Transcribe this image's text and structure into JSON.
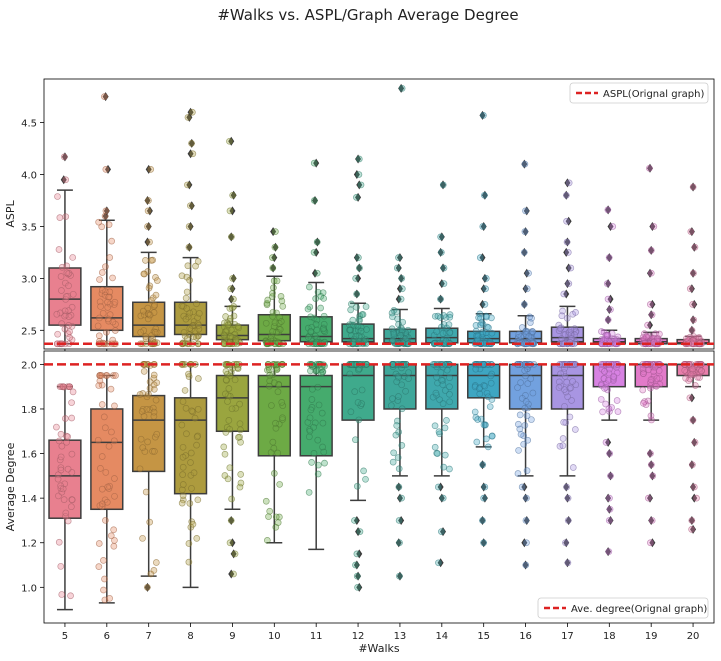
{
  "chart_data": {
    "type": "box",
    "title": "#Walks vs. ASPL/Graph Average Degree",
    "xlabel": "#Walks",
    "categories": [
      "5",
      "6",
      "7",
      "8",
      "9",
      "10",
      "11",
      "12",
      "13",
      "14",
      "15",
      "16",
      "17",
      "18",
      "19",
      "20"
    ],
    "palette": [
      "#e8808f",
      "#e58a62",
      "#c59544",
      "#ad9b3e",
      "#9aa53f",
      "#6daa45",
      "#45ab6d",
      "#3faa8c",
      "#3ea79a",
      "#3fa8ad",
      "#3ea6c2",
      "#72a1df",
      "#a895e2",
      "#d782e2",
      "#e27ac9",
      "#e97eab"
    ],
    "panels": [
      {
        "ylabel": "ASPL",
        "ylim": [
          2.32,
          4.92
        ],
        "yticks": [
          2.5,
          3.0,
          3.5,
          4.0,
          4.5
        ],
        "reference": {
          "value": 2.37,
          "label": "ASPL(Orignal graph)",
          "color": "#dd2222",
          "legend": "top-right"
        },
        "boxes": [
          {
            "q1": 2.55,
            "median": 2.8,
            "q3": 3.1,
            "whislo": 2.37,
            "whishi": 3.85,
            "fliers": [
              3.95,
              4.17
            ]
          },
          {
            "q1": 2.5,
            "median": 2.62,
            "q3": 2.92,
            "whislo": 2.37,
            "whishi": 3.56,
            "fliers": [
              3.6,
              3.65,
              4.05,
              4.75
            ]
          },
          {
            "q1": 2.44,
            "median": 2.55,
            "q3": 2.77,
            "whislo": 2.37,
            "whishi": 3.25,
            "fliers": [
              3.35,
              3.5,
              3.65,
              3.75,
              4.05
            ]
          },
          {
            "q1": 2.46,
            "median": 2.55,
            "q3": 2.77,
            "whislo": 2.37,
            "whishi": 3.2,
            "fliers": [
              3.3,
              3.5,
              3.7,
              3.9,
              4.2,
              4.3,
              4.55,
              4.6
            ]
          },
          {
            "q1": 2.41,
            "median": 2.45,
            "q3": 2.55,
            "whislo": 2.37,
            "whishi": 2.73,
            "fliers": [
              2.8,
              2.9,
              3.0,
              3.4,
              3.65,
              3.8,
              4.32
            ]
          },
          {
            "q1": 2.4,
            "median": 2.46,
            "q3": 2.65,
            "whislo": 2.37,
            "whishi": 3.02,
            "fliers": [
              3.1,
              3.2,
              3.3,
              3.45
            ]
          },
          {
            "q1": 2.39,
            "median": 2.44,
            "q3": 2.63,
            "whislo": 2.37,
            "whishi": 2.96,
            "fliers": [
              3.05,
              3.25,
              3.35,
              3.75,
              4.11
            ]
          },
          {
            "q1": 2.39,
            "median": 2.42,
            "q3": 2.56,
            "whislo": 2.37,
            "whishi": 2.76,
            "fliers": [
              2.85,
              3.0,
              3.1,
              3.2,
              3.78,
              3.9,
              4.0,
              4.15
            ]
          },
          {
            "q1": 2.38,
            "median": 2.42,
            "q3": 2.51,
            "whislo": 2.37,
            "whishi": 2.7,
            "fliers": [
              2.8,
              2.9,
              3.0,
              3.1,
              3.2,
              4.83
            ]
          },
          {
            "q1": 2.38,
            "median": 2.43,
            "q3": 2.52,
            "whislo": 2.37,
            "whishi": 2.71,
            "fliers": [
              2.8,
              2.95,
              3.1,
              3.25,
              3.4,
              3.9
            ]
          },
          {
            "q1": 2.38,
            "median": 2.42,
            "q3": 2.49,
            "whislo": 2.37,
            "whishi": 2.66,
            "fliers": [
              2.75,
              2.9,
              3.0,
              3.2,
              3.5,
              3.8,
              4.57
            ]
          },
          {
            "q1": 2.38,
            "median": 2.42,
            "q3": 2.49,
            "whislo": 2.37,
            "whishi": 2.64,
            "fliers": [
              2.75,
              2.9,
              3.05,
              3.25,
              3.45,
              3.65,
              4.1
            ]
          },
          {
            "q1": 2.39,
            "median": 2.43,
            "q3": 2.53,
            "whislo": 2.37,
            "whishi": 2.73,
            "fliers": [
              2.85,
              2.95,
              3.1,
              3.25,
              3.35,
              3.55,
              3.8,
              3.92
            ]
          },
          {
            "q1": 2.37,
            "median": 2.39,
            "q3": 2.42,
            "whislo": 2.37,
            "whishi": 2.5,
            "fliers": [
              2.6,
              2.7,
              2.8,
              2.95,
              3.2,
              3.5,
              3.66
            ]
          },
          {
            "q1": 2.37,
            "median": 2.39,
            "q3": 2.42,
            "whislo": 2.37,
            "whishi": 2.48,
            "fliers": [
              2.55,
              2.65,
              2.75,
              3.05,
              3.27,
              3.5,
              4.06
            ]
          },
          {
            "q1": 2.37,
            "median": 2.38,
            "q3": 2.41,
            "whislo": 2.37,
            "whishi": 2.44,
            "fliers": [
              2.5,
              2.6,
              2.75,
              2.9,
              3.05,
              3.3,
              3.45,
              3.88
            ]
          }
        ]
      },
      {
        "ylabel": "Average Degree",
        "ylim": [
          0.84,
          2.06
        ],
        "yticks": [
          1.0,
          1.2,
          1.4,
          1.6,
          1.8,
          2.0
        ],
        "reference": {
          "value": 2.0,
          "label": "Ave. degree(Orignal graph)",
          "color": "#dd2222",
          "legend": "bottom-right"
        },
        "boxes": [
          {
            "q1": 1.31,
            "median": 1.5,
            "q3": 1.66,
            "whislo": 0.9,
            "whishi": 1.9,
            "fliers": []
          },
          {
            "q1": 1.35,
            "median": 1.65,
            "q3": 1.8,
            "whislo": 0.93,
            "whishi": 1.95,
            "fliers": []
          },
          {
            "q1": 1.52,
            "median": 1.75,
            "q3": 1.86,
            "whislo": 1.05,
            "whishi": 2.0,
            "fliers": [
              1.0
            ]
          },
          {
            "q1": 1.42,
            "median": 1.75,
            "q3": 1.85,
            "whislo": 1.0,
            "whishi": 2.0,
            "fliers": []
          },
          {
            "q1": 1.7,
            "median": 1.85,
            "q3": 1.95,
            "whislo": 1.35,
            "whishi": 2.0,
            "fliers": [
              1.3,
              1.2,
              1.15,
              1.06
            ]
          },
          {
            "q1": 1.59,
            "median": 1.9,
            "q3": 1.95,
            "whislo": 1.2,
            "whishi": 2.0,
            "fliers": []
          },
          {
            "q1": 1.59,
            "median": 1.9,
            "q3": 1.95,
            "whislo": 1.17,
            "whishi": 2.0,
            "fliers": []
          },
          {
            "q1": 1.75,
            "median": 1.95,
            "q3": 2.0,
            "whislo": 1.39,
            "whishi": 2.0,
            "fliers": [
              1.3,
              1.25,
              1.15,
              1.1,
              1.05,
              1.0
            ]
          },
          {
            "q1": 1.8,
            "median": 1.95,
            "q3": 2.0,
            "whislo": 1.5,
            "whishi": 2.0,
            "fliers": [
              1.45,
              1.4,
              1.3,
              1.2,
              1.05
            ]
          },
          {
            "q1": 1.8,
            "median": 1.95,
            "q3": 2.0,
            "whislo": 1.5,
            "whishi": 2.0,
            "fliers": [
              1.45,
              1.4,
              1.25,
              1.11
            ]
          },
          {
            "q1": 1.85,
            "median": 1.95,
            "q3": 2.0,
            "whislo": 1.63,
            "whishi": 2.0,
            "fliers": [
              1.55,
              1.45,
              1.4,
              1.3,
              1.2
            ]
          },
          {
            "q1": 1.8,
            "median": 1.95,
            "q3": 2.0,
            "whislo": 1.5,
            "whishi": 2.0,
            "fliers": [
              1.45,
              1.4,
              1.3,
              1.2,
              1.1
            ]
          },
          {
            "q1": 1.8,
            "median": 1.95,
            "q3": 2.0,
            "whislo": 1.5,
            "whishi": 2.0,
            "fliers": [
              1.45,
              1.4,
              1.3,
              1.2,
              1.11
            ]
          },
          {
            "q1": 1.9,
            "median": 2.0,
            "q3": 2.0,
            "whislo": 1.75,
            "whishi": 2.0,
            "fliers": [
              1.65,
              1.6,
              1.5,
              1.4,
              1.35,
              1.3,
              1.16
            ]
          },
          {
            "q1": 1.9,
            "median": 2.0,
            "q3": 2.0,
            "whislo": 1.75,
            "whishi": 2.0,
            "fliers": [
              1.6,
              1.55,
              1.5,
              1.4,
              1.3,
              1.2
            ]
          },
          {
            "q1": 1.95,
            "median": 2.0,
            "q3": 2.0,
            "whislo": 1.9,
            "whishi": 2.0,
            "fliers": [
              1.85,
              1.75,
              1.65,
              1.55,
              1.45,
              1.4,
              1.3,
              1.26
            ]
          }
        ]
      }
    ]
  }
}
